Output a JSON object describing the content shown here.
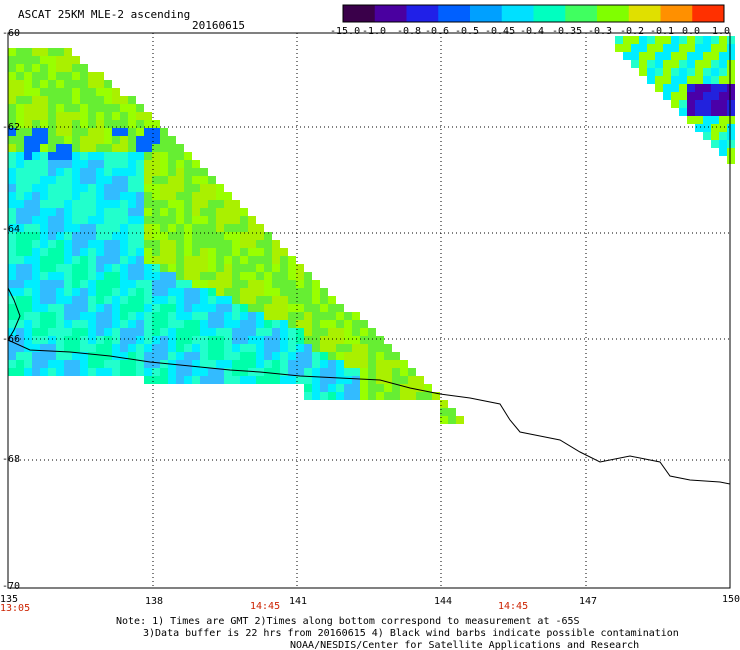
{
  "header": {
    "title": "ASCAT 25KM MLE-2 ascending",
    "date": "20160615"
  },
  "colorbar": {
    "labels": [
      "-15.0",
      "-1.0",
      "-0.8",
      "-0.6",
      "-0.5",
      "-0.45",
      "-0.4",
      "-0.35",
      "-0.3",
      "-0.2",
      "-0.1",
      "0.0",
      "1.0"
    ],
    "colors": [
      "#3a004a",
      "#4a00a0",
      "#2020e8",
      "#0060ff",
      "#00a0ff",
      "#00e0ff",
      "#00ffc0",
      "#40ff60",
      "#80ff00",
      "#e0e000",
      "#ff9000",
      "#ff3000"
    ]
  },
  "axes": {
    "lat_labels": [
      "-60",
      "-62",
      "-64",
      "-66",
      "-68",
      "-70"
    ],
    "lon_labels": [
      "135",
      "138",
      "141",
      "144",
      "147",
      "150"
    ]
  },
  "times": [
    "13:05",
    "14:45",
    "14:45"
  ],
  "notes": {
    "line1": "Note: 1) Times are GMT 2)Times along bottom correspond to measurement at -65S",
    "line2": "3)Data buffer is 22 hrs from 20160615 4) Black wind barbs indicate possible contamination",
    "line3": "NOAA/NESDIS/Center for Satellite Applications and Research"
  }
}
